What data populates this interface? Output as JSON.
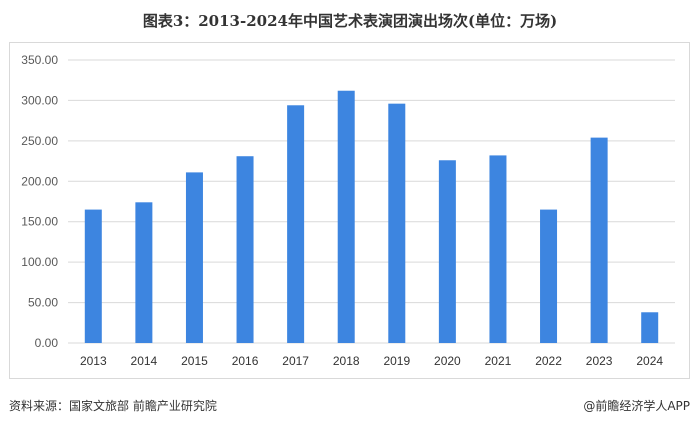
{
  "title": "图表3：2013-2024年中国艺术表演团演出场次(单位：万场)",
  "source": "资料来源：国家文旅部 前瞻产业研究院",
  "brand": "@前瞻经济学人APP",
  "colors": {
    "bar": "#3d85e0",
    "grid": "#d9d9d9",
    "axis_text": "#595959"
  },
  "chart_data": {
    "type": "bar",
    "categories": [
      "2013",
      "2014",
      "2015",
      "2016",
      "2017",
      "2018",
      "2019",
      "2020",
      "2021",
      "2022",
      "2023",
      "2024"
    ],
    "values": [
      165,
      174,
      211,
      231,
      294,
      312,
      296,
      226,
      232,
      165,
      254,
      38
    ],
    "ylim": [
      0,
      350
    ],
    "yticks": [
      "0.00",
      "50.00",
      "100.00",
      "150.00",
      "200.00",
      "250.00",
      "300.00",
      "350.00"
    ],
    "grid": true,
    "legend": "none"
  }
}
